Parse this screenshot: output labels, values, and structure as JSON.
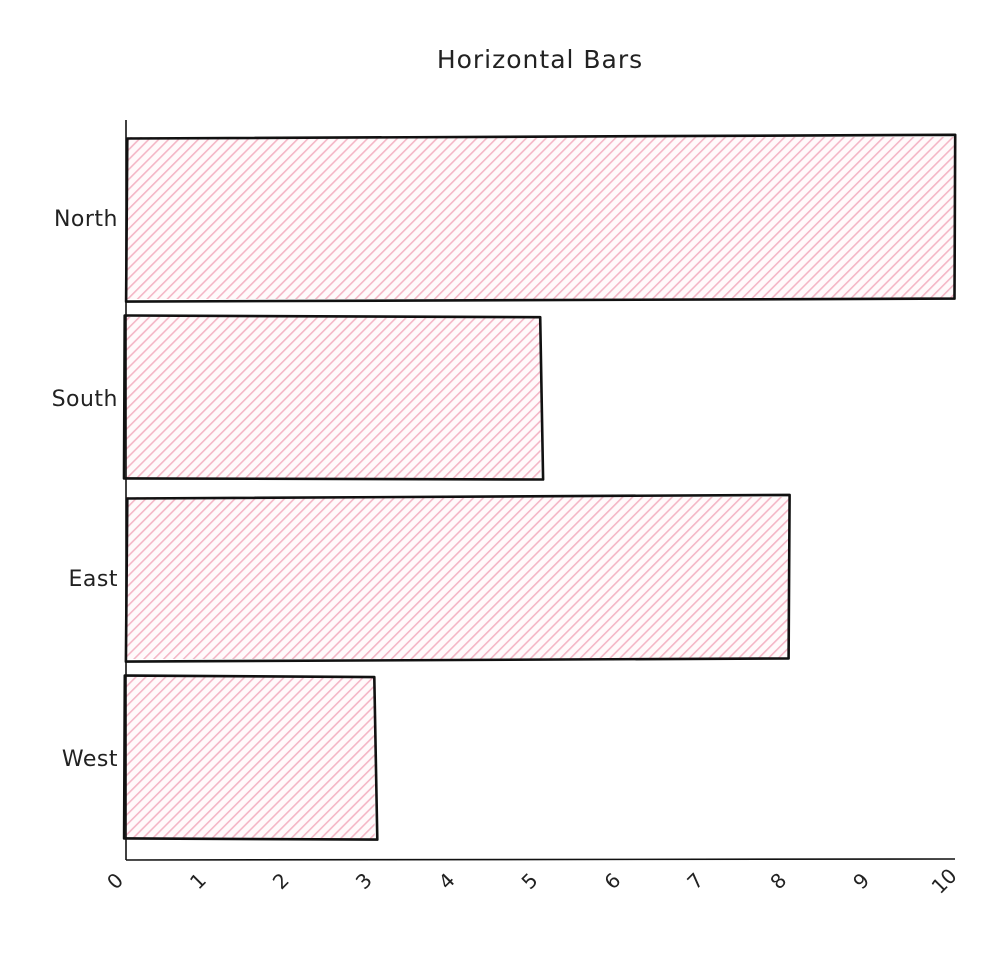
{
  "chart_data": {
    "type": "bar",
    "orientation": "horizontal",
    "title": "Horizontal Bars",
    "categories": [
      "North",
      "South",
      "East",
      "West"
    ],
    "values": [
      10,
      5,
      8,
      3
    ],
    "xlim": [
      0,
      10
    ],
    "xticks": [
      "0",
      "1",
      "2",
      "3",
      "4",
      "5",
      "6",
      "7",
      "8",
      "9",
      "10"
    ],
    "xlabel": "",
    "ylabel": "",
    "grid": false,
    "fill_color": "#f4b6c6",
    "outline_color": "#111111",
    "style": "hand-drawn hatched fill"
  }
}
